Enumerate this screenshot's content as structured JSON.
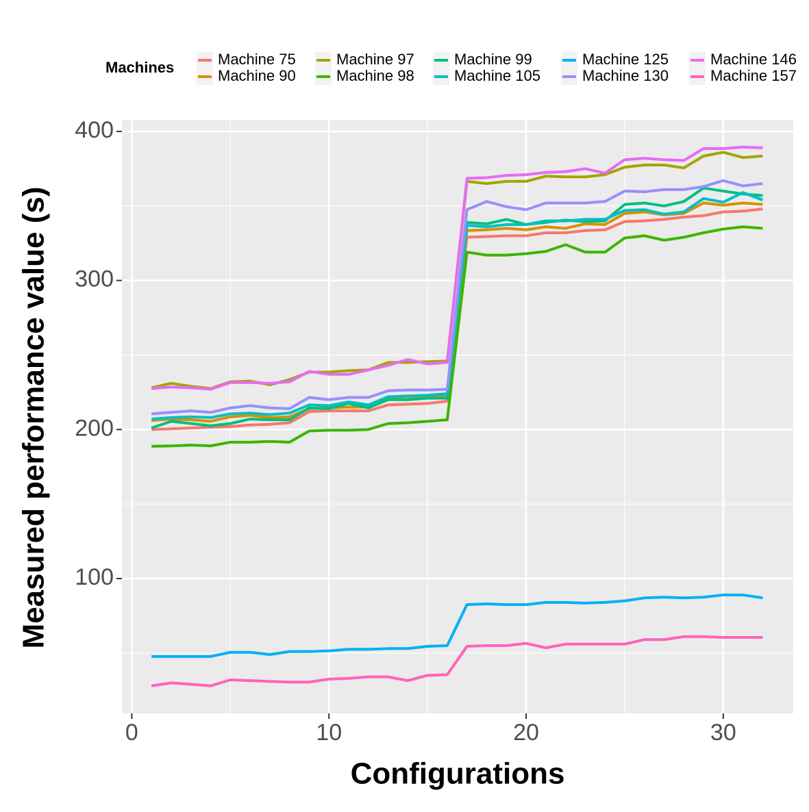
{
  "chart_data": {
    "type": "line",
    "xlabel": "Configurations",
    "ylabel": "Measured performance value (s)",
    "legend_title": "Machines",
    "legend_position": "top",
    "x": [
      1,
      2,
      3,
      4,
      5,
      6,
      7,
      8,
      9,
      10,
      11,
      12,
      13,
      14,
      15,
      16,
      17,
      18,
      19,
      20,
      21,
      22,
      23,
      24,
      25,
      26,
      27,
      28,
      29,
      30,
      31,
      32
    ],
    "xlim": [
      -0.5,
      33.55
    ],
    "xticks": [
      0,
      10,
      20,
      30
    ],
    "minor_xticks": [
      5,
      15,
      25
    ],
    "ylim": [
      9.5,
      407.8
    ],
    "yticks": [
      100,
      200,
      300,
      400
    ],
    "minor_yticks": [
      50,
      150,
      250,
      350
    ],
    "grid": true,
    "series": [
      {
        "name": "Machine 75",
        "color": "#F8766D",
        "values": [
          200,
          200.5,
          201,
          201.5,
          202,
          203,
          203.5,
          204.5,
          212,
          212.5,
          212.5,
          212.5,
          216.5,
          217,
          217.5,
          219,
          329,
          329.5,
          330,
          330,
          332,
          332,
          333.5,
          334,
          339.5,
          340,
          341,
          342.5,
          343.5,
          346,
          346.5,
          348
        ]
      },
      {
        "name": "Machine 90",
        "color": "#D89000",
        "values": [
          206,
          207,
          206.5,
          205.5,
          208.5,
          209.5,
          208,
          208.5,
          214,
          214.5,
          215,
          215,
          221,
          222,
          222,
          222,
          333.5,
          334,
          335,
          334,
          336,
          335,
          338,
          337.5,
          345,
          346,
          344,
          345,
          352,
          350.5,
          352,
          351
        ]
      },
      {
        "name": "Machine 97",
        "color": "#A3A500",
        "values": [
          228,
          231,
          229,
          227.5,
          232,
          232.5,
          230,
          233.5,
          238.5,
          238.5,
          239.5,
          240,
          245,
          245,
          245.5,
          246,
          366.5,
          365,
          366.5,
          366.5,
          370,
          369.5,
          369.5,
          371,
          376,
          377.5,
          377.5,
          375.5,
          383.5,
          386,
          382.5,
          383.5
        ]
      },
      {
        "name": "Machine 98",
        "color": "#39B600",
        "values": [
          188.7,
          189,
          189.5,
          189,
          191.5,
          191.5,
          192,
          191.5,
          199,
          199.5,
          199.5,
          200,
          204,
          204.5,
          205.5,
          206.5,
          319,
          317,
          317,
          318,
          319.5,
          324,
          319,
          319,
          328.5,
          330,
          327,
          329,
          332,
          334.5,
          336,
          335
        ]
      },
      {
        "name": "Machine 99",
        "color": "#00BF7D",
        "values": [
          201,
          205.5,
          204,
          202.5,
          204,
          207,
          206.5,
          206.5,
          214.5,
          214,
          217.5,
          214.5,
          220,
          220,
          221,
          221,
          339,
          338,
          341,
          337.5,
          339,
          340.5,
          339.5,
          340,
          351,
          352,
          350,
          353,
          362,
          360,
          358,
          357
        ]
      },
      {
        "name": "Machine 105",
        "color": "#00BFC4",
        "values": [
          207,
          208,
          208.5,
          208,
          210.5,
          211,
          210,
          211,
          216.5,
          216,
          218.5,
          216.5,
          222,
          222.5,
          223,
          224,
          337,
          336,
          337.5,
          337.5,
          340,
          340,
          341,
          341,
          347,
          347.5,
          344.5,
          346,
          355,
          352.5,
          359,
          354
        ]
      },
      {
        "name": "Machine 125",
        "color": "#00B0F6",
        "values": [
          47.7,
          47.7,
          47.7,
          47.7,
          50.5,
          50.5,
          49,
          51,
          51,
          51.5,
          52.5,
          52.5,
          53,
          53,
          54.5,
          55,
          82.5,
          83,
          82.5,
          82.5,
          84,
          84,
          83.5,
          84,
          85,
          87,
          87.5,
          87,
          87.5,
          89,
          89,
          87
        ]
      },
      {
        "name": "Machine 130",
        "color": "#9590FF",
        "values": [
          210.5,
          211.5,
          212.5,
          211.5,
          214.5,
          216,
          214.5,
          214,
          221.5,
          220,
          221.5,
          221.5,
          226,
          226.5,
          226.5,
          227,
          347.5,
          353,
          349.5,
          347.5,
          352,
          352,
          352,
          353,
          360,
          359.5,
          361,
          361,
          363,
          367,
          363.5,
          365
        ]
      },
      {
        "name": "Machine 146",
        "color": "#E76BF3",
        "values": [
          227.5,
          228.5,
          228,
          227,
          231.5,
          231.5,
          231,
          232,
          239,
          237,
          237,
          240,
          243,
          247,
          244,
          245,
          368.5,
          369,
          370.5,
          371,
          372.5,
          373,
          375,
          372,
          381,
          382,
          381,
          380.5,
          388.5,
          388.5,
          389.5,
          389
        ]
      },
      {
        "name": "Machine 157",
        "color": "#FF62BC",
        "values": [
          28,
          30,
          29,
          28,
          32,
          31.5,
          31,
          30.5,
          30.5,
          32.5,
          33,
          34,
          34,
          31.5,
          35,
          35.5,
          54.5,
          55,
          55,
          56.5,
          53.5,
          56,
          56,
          56,
          56,
          59,
          59,
          61,
          61,
          60.5,
          60.5,
          60.5
        ]
      }
    ]
  }
}
